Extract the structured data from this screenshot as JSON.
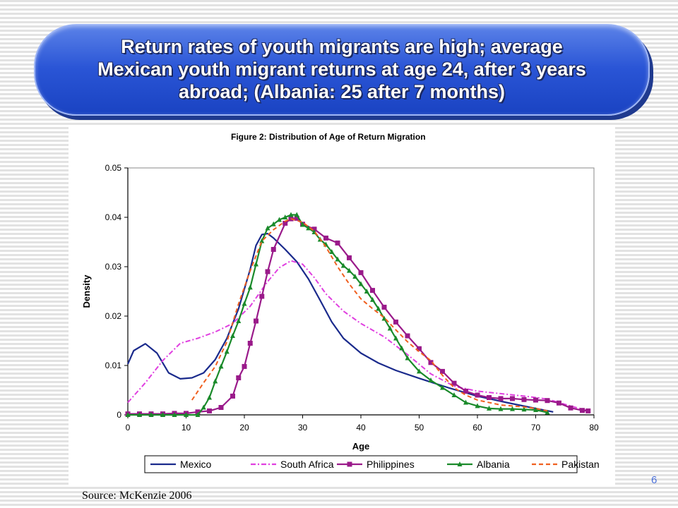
{
  "slide": {
    "title": "Return rates of youth migrants are high; average\nMexican youth migrant returns at age 24, after 3 years\nabroad; (Albania: 25 after 7 months)",
    "source": "Source: McKenzie 2006",
    "page_number": "6"
  },
  "chart_data": {
    "type": "line",
    "title": "Figure 2: Distribution of Age of Return Migration",
    "xlabel": "Age",
    "ylabel": "Density",
    "xlim": [
      0,
      80
    ],
    "ylim": [
      0,
      0.05
    ],
    "x_ticks": [
      "0",
      "10",
      "20",
      "30",
      "40",
      "50",
      "60",
      "70",
      "80"
    ],
    "y_ticks": [
      "0",
      "0.01",
      "0.02",
      "0.03",
      "0.04",
      "0.05"
    ],
    "grid": false,
    "legend_position": "bottom",
    "series": [
      {
        "name": "Mexico",
        "color": "#1a2a8c",
        "style": "solid",
        "marker": "none",
        "points": [
          [
            0,
            0.0103
          ],
          [
            1,
            0.013
          ],
          [
            3,
            0.0144
          ],
          [
            5,
            0.0125
          ],
          [
            7,
            0.0085
          ],
          [
            9,
            0.0073
          ],
          [
            11,
            0.0075
          ],
          [
            13,
            0.0085
          ],
          [
            15,
            0.0112
          ],
          [
            17,
            0.0155
          ],
          [
            19,
            0.0215
          ],
          [
            21,
            0.0295
          ],
          [
            22,
            0.0343
          ],
          [
            23,
            0.0365
          ],
          [
            24,
            0.0367
          ],
          [
            25,
            0.0358
          ],
          [
            27,
            0.0335
          ],
          [
            29,
            0.031
          ],
          [
            31,
            0.0275
          ],
          [
            33,
            0.0232
          ],
          [
            35,
            0.0188
          ],
          [
            37,
            0.0155
          ],
          [
            40,
            0.0125
          ],
          [
            43,
            0.0105
          ],
          [
            46,
            0.009
          ],
          [
            50,
            0.0074
          ],
          [
            55,
            0.0055
          ],
          [
            60,
            0.0038
          ],
          [
            65,
            0.0025
          ],
          [
            70,
            0.0013
          ],
          [
            73,
            0.0006
          ]
        ]
      },
      {
        "name": "South Africa",
        "color": "#e040e0",
        "style": "dashdot",
        "marker": "none",
        "points": [
          [
            0,
            0.0025
          ],
          [
            3,
            0.0065
          ],
          [
            6,
            0.011
          ],
          [
            9,
            0.0145
          ],
          [
            12,
            0.0155
          ],
          [
            15,
            0.0168
          ],
          [
            18,
            0.0185
          ],
          [
            21,
            0.022
          ],
          [
            24,
            0.027
          ],
          [
            26,
            0.0298
          ],
          [
            28,
            0.0312
          ],
          [
            30,
            0.0305
          ],
          [
            32,
            0.0278
          ],
          [
            34,
            0.0245
          ],
          [
            37,
            0.021
          ],
          [
            40,
            0.0185
          ],
          [
            44,
            0.0158
          ],
          [
            48,
            0.0122
          ],
          [
            52,
            0.0083
          ],
          [
            56,
            0.0058
          ],
          [
            60,
            0.0048
          ],
          [
            64,
            0.0043
          ],
          [
            68,
            0.0038
          ],
          [
            72,
            0.0032
          ],
          [
            76,
            0.0018
          ],
          [
            79,
            0.0008
          ]
        ]
      },
      {
        "name": "Philippines",
        "color": "#9a1a8a",
        "style": "solid",
        "marker": "square",
        "points": [
          [
            0,
            0.0002
          ],
          [
            2,
            0.0002
          ],
          [
            4,
            0.0002
          ],
          [
            6,
            0.0002
          ],
          [
            8,
            0.0003
          ],
          [
            10,
            0.0003
          ],
          [
            12,
            0.0006
          ],
          [
            14,
            0.0008
          ],
          [
            16,
            0.0015
          ],
          [
            18,
            0.0038
          ],
          [
            19,
            0.0075
          ],
          [
            20,
            0.0098
          ],
          [
            21,
            0.0145
          ],
          [
            22,
            0.019
          ],
          [
            23,
            0.024
          ],
          [
            24,
            0.029
          ],
          [
            25,
            0.0335
          ],
          [
            27,
            0.0388
          ],
          [
            28,
            0.0397
          ],
          [
            29,
            0.0398
          ],
          [
            30,
            0.0386
          ],
          [
            32,
            0.0376
          ],
          [
            34,
            0.0358
          ],
          [
            36,
            0.0348
          ],
          [
            38,
            0.0318
          ],
          [
            40,
            0.0288
          ],
          [
            42,
            0.0252
          ],
          [
            44,
            0.0218
          ],
          [
            46,
            0.0188
          ],
          [
            48,
            0.016
          ],
          [
            50,
            0.0134
          ],
          [
            52,
            0.0106
          ],
          [
            54,
            0.0088
          ],
          [
            56,
            0.0064
          ],
          [
            58,
            0.0048
          ],
          [
            60,
            0.004
          ],
          [
            62,
            0.0035
          ],
          [
            64,
            0.0033
          ],
          [
            66,
            0.0033
          ],
          [
            68,
            0.0031
          ],
          [
            70,
            0.003
          ],
          [
            72,
            0.0029
          ],
          [
            74,
            0.0024
          ],
          [
            76,
            0.0014
          ],
          [
            78,
            0.0009
          ],
          [
            79,
            0.0008
          ]
        ]
      },
      {
        "name": "Albania",
        "color": "#1a8a2a",
        "style": "solid",
        "marker": "triangle",
        "points": [
          [
            0,
            0.0
          ],
          [
            2,
            0.0
          ],
          [
            4,
            0.0
          ],
          [
            6,
            0.0
          ],
          [
            8,
            0.0
          ],
          [
            10,
            0.0
          ],
          [
            12,
            0.0
          ],
          [
            13,
            0.0015
          ],
          [
            14,
            0.0035
          ],
          [
            15,
            0.0068
          ],
          [
            16,
            0.0098
          ],
          [
            17,
            0.0128
          ],
          [
            18,
            0.016
          ],
          [
            19,
            0.019
          ],
          [
            20,
            0.0225
          ],
          [
            21,
            0.0258
          ],
          [
            22,
            0.0305
          ],
          [
            23,
            0.0352
          ],
          [
            24,
            0.0378
          ],
          [
            25,
            0.0386
          ],
          [
            26,
            0.0395
          ],
          [
            27,
            0.04
          ],
          [
            28,
            0.0405
          ],
          [
            29,
            0.0405
          ],
          [
            30,
            0.0385
          ],
          [
            31,
            0.0378
          ],
          [
            32,
            0.037
          ],
          [
            33,
            0.0355
          ],
          [
            34,
            0.0345
          ],
          [
            35,
            0.033
          ],
          [
            36,
            0.0315
          ],
          [
            37,
            0.0302
          ],
          [
            38,
            0.0292
          ],
          [
            39,
            0.028
          ],
          [
            40,
            0.0265
          ],
          [
            41,
            0.025
          ],
          [
            42,
            0.0233
          ],
          [
            43,
            0.0215
          ],
          [
            44,
            0.0195
          ],
          [
            45,
            0.0175
          ],
          [
            46,
            0.0155
          ],
          [
            47,
            0.0135
          ],
          [
            48,
            0.0115
          ],
          [
            50,
            0.0088
          ],
          [
            52,
            0.007
          ],
          [
            54,
            0.0055
          ],
          [
            56,
            0.004
          ],
          [
            58,
            0.0025
          ],
          [
            60,
            0.0018
          ],
          [
            62,
            0.0013
          ],
          [
            64,
            0.0012
          ],
          [
            66,
            0.0012
          ],
          [
            68,
            0.0011
          ],
          [
            70,
            0.001
          ],
          [
            72,
            0.0005
          ]
        ]
      },
      {
        "name": "Pakistan",
        "color": "#f06020",
        "style": "dashed",
        "marker": "none",
        "points": [
          [
            11,
            0.003
          ],
          [
            13,
            0.0065
          ],
          [
            15,
            0.0098
          ],
          [
            17,
            0.0148
          ],
          [
            19,
            0.0225
          ],
          [
            21,
            0.0292
          ],
          [
            23,
            0.0352
          ],
          [
            25,
            0.0375
          ],
          [
            27,
            0.0392
          ],
          [
            28,
            0.0397
          ],
          [
            30,
            0.039
          ],
          [
            32,
            0.0372
          ],
          [
            34,
            0.034
          ],
          [
            36,
            0.03
          ],
          [
            38,
            0.0265
          ],
          [
            40,
            0.0235
          ],
          [
            42,
            0.0215
          ],
          [
            44,
            0.0197
          ],
          [
            46,
            0.0172
          ],
          [
            48,
            0.0148
          ],
          [
            50,
            0.0128
          ],
          [
            52,
            0.011
          ],
          [
            54,
            0.008
          ],
          [
            56,
            0.0055
          ],
          [
            58,
            0.004
          ],
          [
            60,
            0.003
          ],
          [
            62,
            0.0025
          ],
          [
            64,
            0.002
          ],
          [
            66,
            0.0018
          ],
          [
            68,
            0.0016
          ],
          [
            70,
            0.0013
          ],
          [
            72,
            0.0008
          ]
        ]
      }
    ]
  }
}
